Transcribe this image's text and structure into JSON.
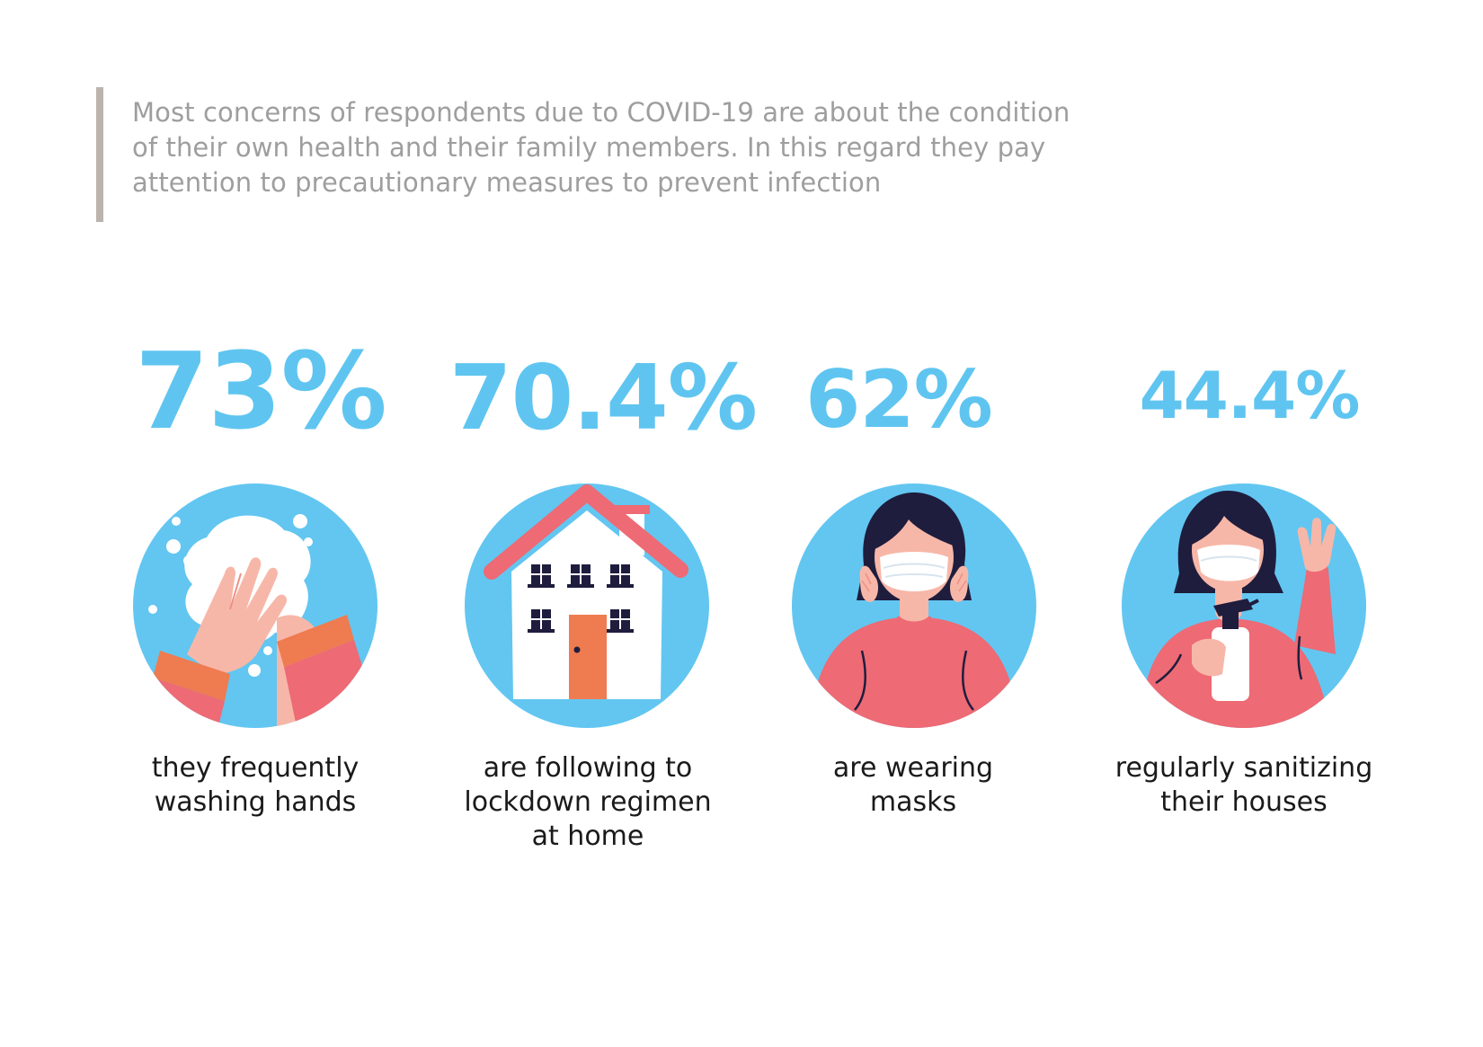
{
  "intro": {
    "lines": [
      "Most concerns of respondents due to COVID-19 are about the condition",
      "of their own health and their family members. In this regard they pay",
      "attention to precautionary measures to prevent infection"
    ]
  },
  "stats": [
    {
      "percent": "73%",
      "value": 73,
      "icon": "washing-hands-icon",
      "caption_lines": [
        "they frequently",
        "washing hands"
      ]
    },
    {
      "percent": "70.4%",
      "value": 70.4,
      "icon": "house-icon",
      "caption_lines": [
        "are following to",
        "lockdown regimen",
        "at home"
      ]
    },
    {
      "percent": "62%",
      "value": 62,
      "icon": "woman-wearing-mask-icon",
      "caption_lines": [
        "are wearing",
        "masks"
      ]
    },
    {
      "percent": "44.4%",
      "value": 44.4,
      "icon": "woman-sanitizing-spray-icon",
      "caption_lines": [
        "regularly sanitizing",
        "their houses"
      ]
    }
  ],
  "colors": {
    "accent_blue": "#5fc5f0",
    "circle_blue": "#62c6f1",
    "coral": "#ee6a74",
    "orange": "#ef7b50",
    "skin": "#f7b7a8",
    "navy": "#1f1d3d",
    "intro_text": "#9e9e9e",
    "intro_bar": "#bcb3ad"
  }
}
